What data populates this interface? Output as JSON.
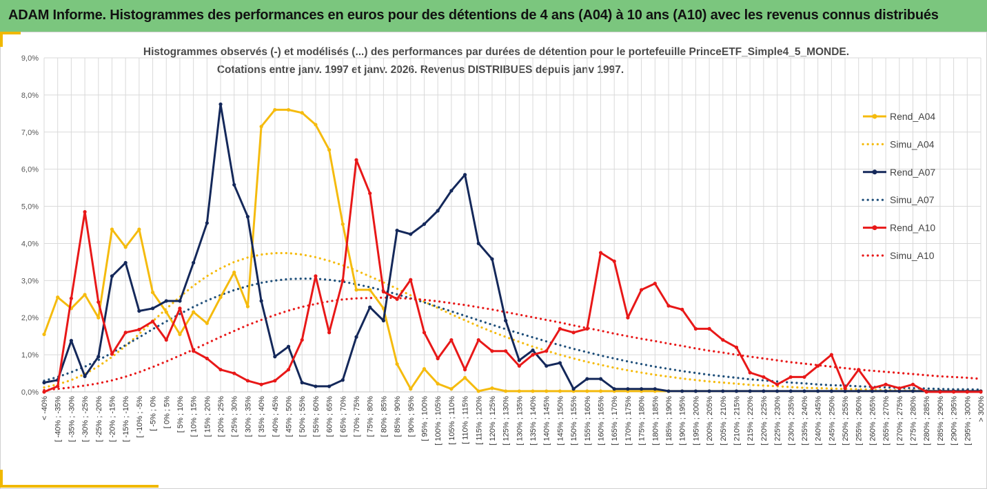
{
  "banner": {
    "title": "ADAM Informe. Histogrammes des performances en euros pour des détentions de 4 ans (A04) à 10 ans (A10) avec les revenus connus distribués"
  },
  "chart_data": {
    "type": "line",
    "title": "Histogrammes observés (-) et modélisés (...) des performances par durées de détention pour  le portefeuille PrinceETF_Simple4_5_MONDE.",
    "subtitle": "Cotations entre janv. 1997 et janv. 2026. Revenus DISTRIBUES depuis janv 1997.",
    "ylim": [
      0,
      9
    ],
    "yticks": [
      "0,0%",
      "1,0%",
      "2,0%",
      "3,0%",
      "4,0%",
      "5,0%",
      "6,0%",
      "7,0%",
      "8,0%",
      "9,0%"
    ],
    "grid": true,
    "legend_position": "right",
    "categories": [
      "< -40%",
      "[ -40% ; -35%",
      "[ -35% ; -30%",
      "[ -30% ; -25%",
      "[ -25% ; -20%",
      "[ -20% ; -15%",
      "[ -15% ; -10%",
      "[ -10% ; -5%",
      "[ -5% ; 0%",
      "[ 0% ; 5%",
      "[ 5% ; 10%",
      "[ 10% ; 15%",
      "[ 15% ; 20%",
      "[ 20% ; 25%",
      "[ 25% ; 30%",
      "[ 30% ; 35%",
      "[ 35% ; 40%",
      "[ 40% ; 45%",
      "[ 45% ; 50%",
      "[ 50% ; 55%",
      "[ 55% ; 60%",
      "[ 60% ; 65%",
      "[ 65% ; 70%",
      "[ 70% ; 75%",
      "[ 75% ; 80%",
      "[ 80% ; 85%",
      "[ 85% ; 90%",
      "[ 90% ; 95%",
      "[ 95% ; 100%",
      "[ 100% ; 105%",
      "[ 105% ; 110%",
      "[ 110% ; 115%",
      "[ 115% ; 120%",
      "[ 120% ; 125%",
      "[ 125% ; 130%",
      "[ 130% ; 135%",
      "[ 135% ; 140%",
      "[ 140% ; 145%",
      "[ 145% ; 150%",
      "[ 150% ; 155%",
      "[ 155% ; 160%",
      "[ 160% ; 165%",
      "[ 165% ; 170%",
      "[ 170% ; 175%",
      "[ 175% ; 180%",
      "[ 180% ; 185%",
      "[ 185% ; 190%",
      "[ 190% ; 195%",
      "[ 195% ; 200%",
      "[ 200% ; 205%",
      "[ 205% ; 210%",
      "[ 210% ; 215%",
      "[ 215% ; 220%",
      "[ 220% ; 225%",
      "[ 225% ; 230%",
      "[ 230% ; 235%",
      "[ 235% ; 240%",
      "[ 240% ; 245%",
      "[ 245% ; 250%",
      "[ 250% ; 255%",
      "[ 255% ; 260%",
      "[ 260% ; 265%",
      "[ 265% ; 270%",
      "[ 270% ; 275%",
      "[ 275% ; 280%",
      "[ 280% ; 285%",
      "[ 285% ; 290%",
      "[ 290% ; 295%",
      "[ 295% ; 300%",
      "> 300%"
    ],
    "series": [
      {
        "name": "Rend_A04",
        "style": "solid-markers",
        "color": "#f5bb0e",
        "values": [
          1.55,
          2.55,
          2.25,
          2.62,
          2.0,
          4.38,
          3.9,
          4.38,
          2.68,
          2.15,
          1.55,
          2.15,
          1.85,
          2.55,
          3.22,
          2.3,
          7.15,
          7.6,
          7.6,
          7.52,
          7.2,
          6.52,
          4.52,
          2.75,
          2.75,
          2.25,
          0.75,
          0.08,
          0.62,
          0.22,
          0.08,
          0.38,
          0.02,
          0.1,
          0.02,
          0.02,
          0.02,
          0.02,
          0.02,
          0.02,
          0.02,
          0.02,
          0.02,
          0.02,
          0.02,
          0.02,
          0.02,
          0.02,
          0.02,
          0.02,
          0.02,
          0.02,
          0.02,
          0.02,
          0.02,
          0.02,
          0.02,
          0.02,
          0.02,
          0.02,
          0.02,
          0.02,
          0.02,
          0.02,
          0.02,
          0.02,
          0.02,
          0.02,
          0.02,
          0.02
        ]
      },
      {
        "name": "Simu_A04",
        "style": "dotted",
        "color": "#f5bb0e",
        "values": [
          0.12,
          0.2,
          0.32,
          0.48,
          0.69,
          0.94,
          1.24,
          1.56,
          1.9,
          2.24,
          2.56,
          2.86,
          3.12,
          3.33,
          3.5,
          3.62,
          3.7,
          3.74,
          3.74,
          3.7,
          3.63,
          3.53,
          3.41,
          3.27,
          3.11,
          2.95,
          2.78,
          2.6,
          2.43,
          2.26,
          2.09,
          1.93,
          1.77,
          1.62,
          1.48,
          1.35,
          1.22,
          1.11,
          1.0,
          0.9,
          0.81,
          0.73,
          0.65,
          0.58,
          0.52,
          0.46,
          0.41,
          0.36,
          0.32,
          0.28,
          0.25,
          0.22,
          0.19,
          0.17,
          0.15,
          0.13,
          0.11,
          0.1,
          0.09,
          0.08,
          0.07,
          0.06,
          0.05,
          0.04,
          0.04,
          0.03,
          0.03,
          0.02,
          0.02,
          0.02
        ]
      },
      {
        "name": "Rend_A07",
        "style": "solid-markers",
        "color": "#14285a",
        "values": [
          0.25,
          0.32,
          1.38,
          0.42,
          0.95,
          3.12,
          3.48,
          2.18,
          2.25,
          2.45,
          2.45,
          3.48,
          4.55,
          7.75,
          5.58,
          4.72,
          2.45,
          0.95,
          1.22,
          0.25,
          0.15,
          0.15,
          0.32,
          1.48,
          2.28,
          1.92,
          4.35,
          4.25,
          4.52,
          4.88,
          5.42,
          5.85,
          4.0,
          3.58,
          1.92,
          0.85,
          1.12,
          0.7,
          0.78,
          0.08,
          0.35,
          0.35,
          0.08,
          0.08,
          0.08,
          0.08,
          0.02,
          0.02,
          0.02,
          0.02,
          0.02,
          0.02,
          0.02,
          0.02,
          0.02,
          0.02,
          0.02,
          0.02,
          0.02,
          0.02,
          0.02,
          0.02,
          0.02,
          0.02,
          0.02,
          0.02,
          0.02,
          0.02,
          0.02,
          0.02
        ]
      },
      {
        "name": "Simu_A07",
        "style": "dotted",
        "color": "#1f4f7a",
        "values": [
          0.3,
          0.4,
          0.53,
          0.68,
          0.86,
          1.05,
          1.26,
          1.47,
          1.69,
          1.9,
          2.1,
          2.29,
          2.46,
          2.61,
          2.74,
          2.85,
          2.94,
          3.0,
          3.04,
          3.05,
          3.05,
          3.02,
          2.97,
          2.9,
          2.82,
          2.73,
          2.63,
          2.52,
          2.41,
          2.29,
          2.17,
          2.05,
          1.93,
          1.81,
          1.69,
          1.58,
          1.47,
          1.36,
          1.26,
          1.16,
          1.07,
          0.98,
          0.9,
          0.82,
          0.75,
          0.68,
          0.62,
          0.56,
          0.51,
          0.46,
          0.42,
          0.38,
          0.34,
          0.31,
          0.28,
          0.25,
          0.23,
          0.2,
          0.18,
          0.17,
          0.15,
          0.14,
          0.12,
          0.11,
          0.1,
          0.09,
          0.08,
          0.07,
          0.07,
          0.06
        ]
      },
      {
        "name": "Rend_A10",
        "style": "solid-markers",
        "color": "#e81818",
        "values": [
          0.0,
          0.15,
          2.52,
          4.85,
          2.42,
          1.02,
          1.6,
          1.68,
          1.9,
          1.4,
          2.25,
          1.1,
          0.9,
          0.6,
          0.5,
          0.3,
          0.2,
          0.3,
          0.6,
          1.4,
          3.12,
          1.6,
          3.0,
          6.25,
          5.35,
          2.7,
          2.5,
          3.02,
          1.6,
          0.9,
          1.4,
          0.6,
          1.4,
          1.1,
          1.1,
          0.7,
          1.0,
          1.1,
          1.7,
          1.6,
          1.7,
          3.75,
          3.52,
          2.0,
          2.75,
          2.92,
          2.32,
          2.22,
          1.7,
          1.7,
          1.4,
          1.2,
          0.52,
          0.4,
          0.2,
          0.4,
          0.4,
          0.7,
          1.0,
          0.1,
          0.6,
          0.1,
          0.2,
          0.1,
          0.2,
          0.0,
          0.0,
          0.0,
          0.0,
          0.0
        ]
      },
      {
        "name": "Simu_A10",
        "style": "dotted",
        "color": "#e81818",
        "values": [
          0.05,
          0.08,
          0.12,
          0.17,
          0.23,
          0.31,
          0.41,
          0.53,
          0.67,
          0.82,
          0.98,
          1.14,
          1.31,
          1.48,
          1.64,
          1.8,
          1.94,
          2.07,
          2.19,
          2.29,
          2.37,
          2.44,
          2.49,
          2.52,
          2.53,
          2.54,
          2.53,
          2.51,
          2.48,
          2.44,
          2.39,
          2.34,
          2.28,
          2.22,
          2.15,
          2.08,
          2.01,
          1.94,
          1.87,
          1.79,
          1.72,
          1.65,
          1.57,
          1.5,
          1.43,
          1.37,
          1.3,
          1.24,
          1.17,
          1.11,
          1.06,
          1.0,
          0.95,
          0.9,
          0.85,
          0.8,
          0.76,
          0.72,
          0.68,
          0.64,
          0.6,
          0.57,
          0.54,
          0.51,
          0.48,
          0.45,
          0.42,
          0.4,
          0.38,
          0.35
        ]
      }
    ]
  }
}
